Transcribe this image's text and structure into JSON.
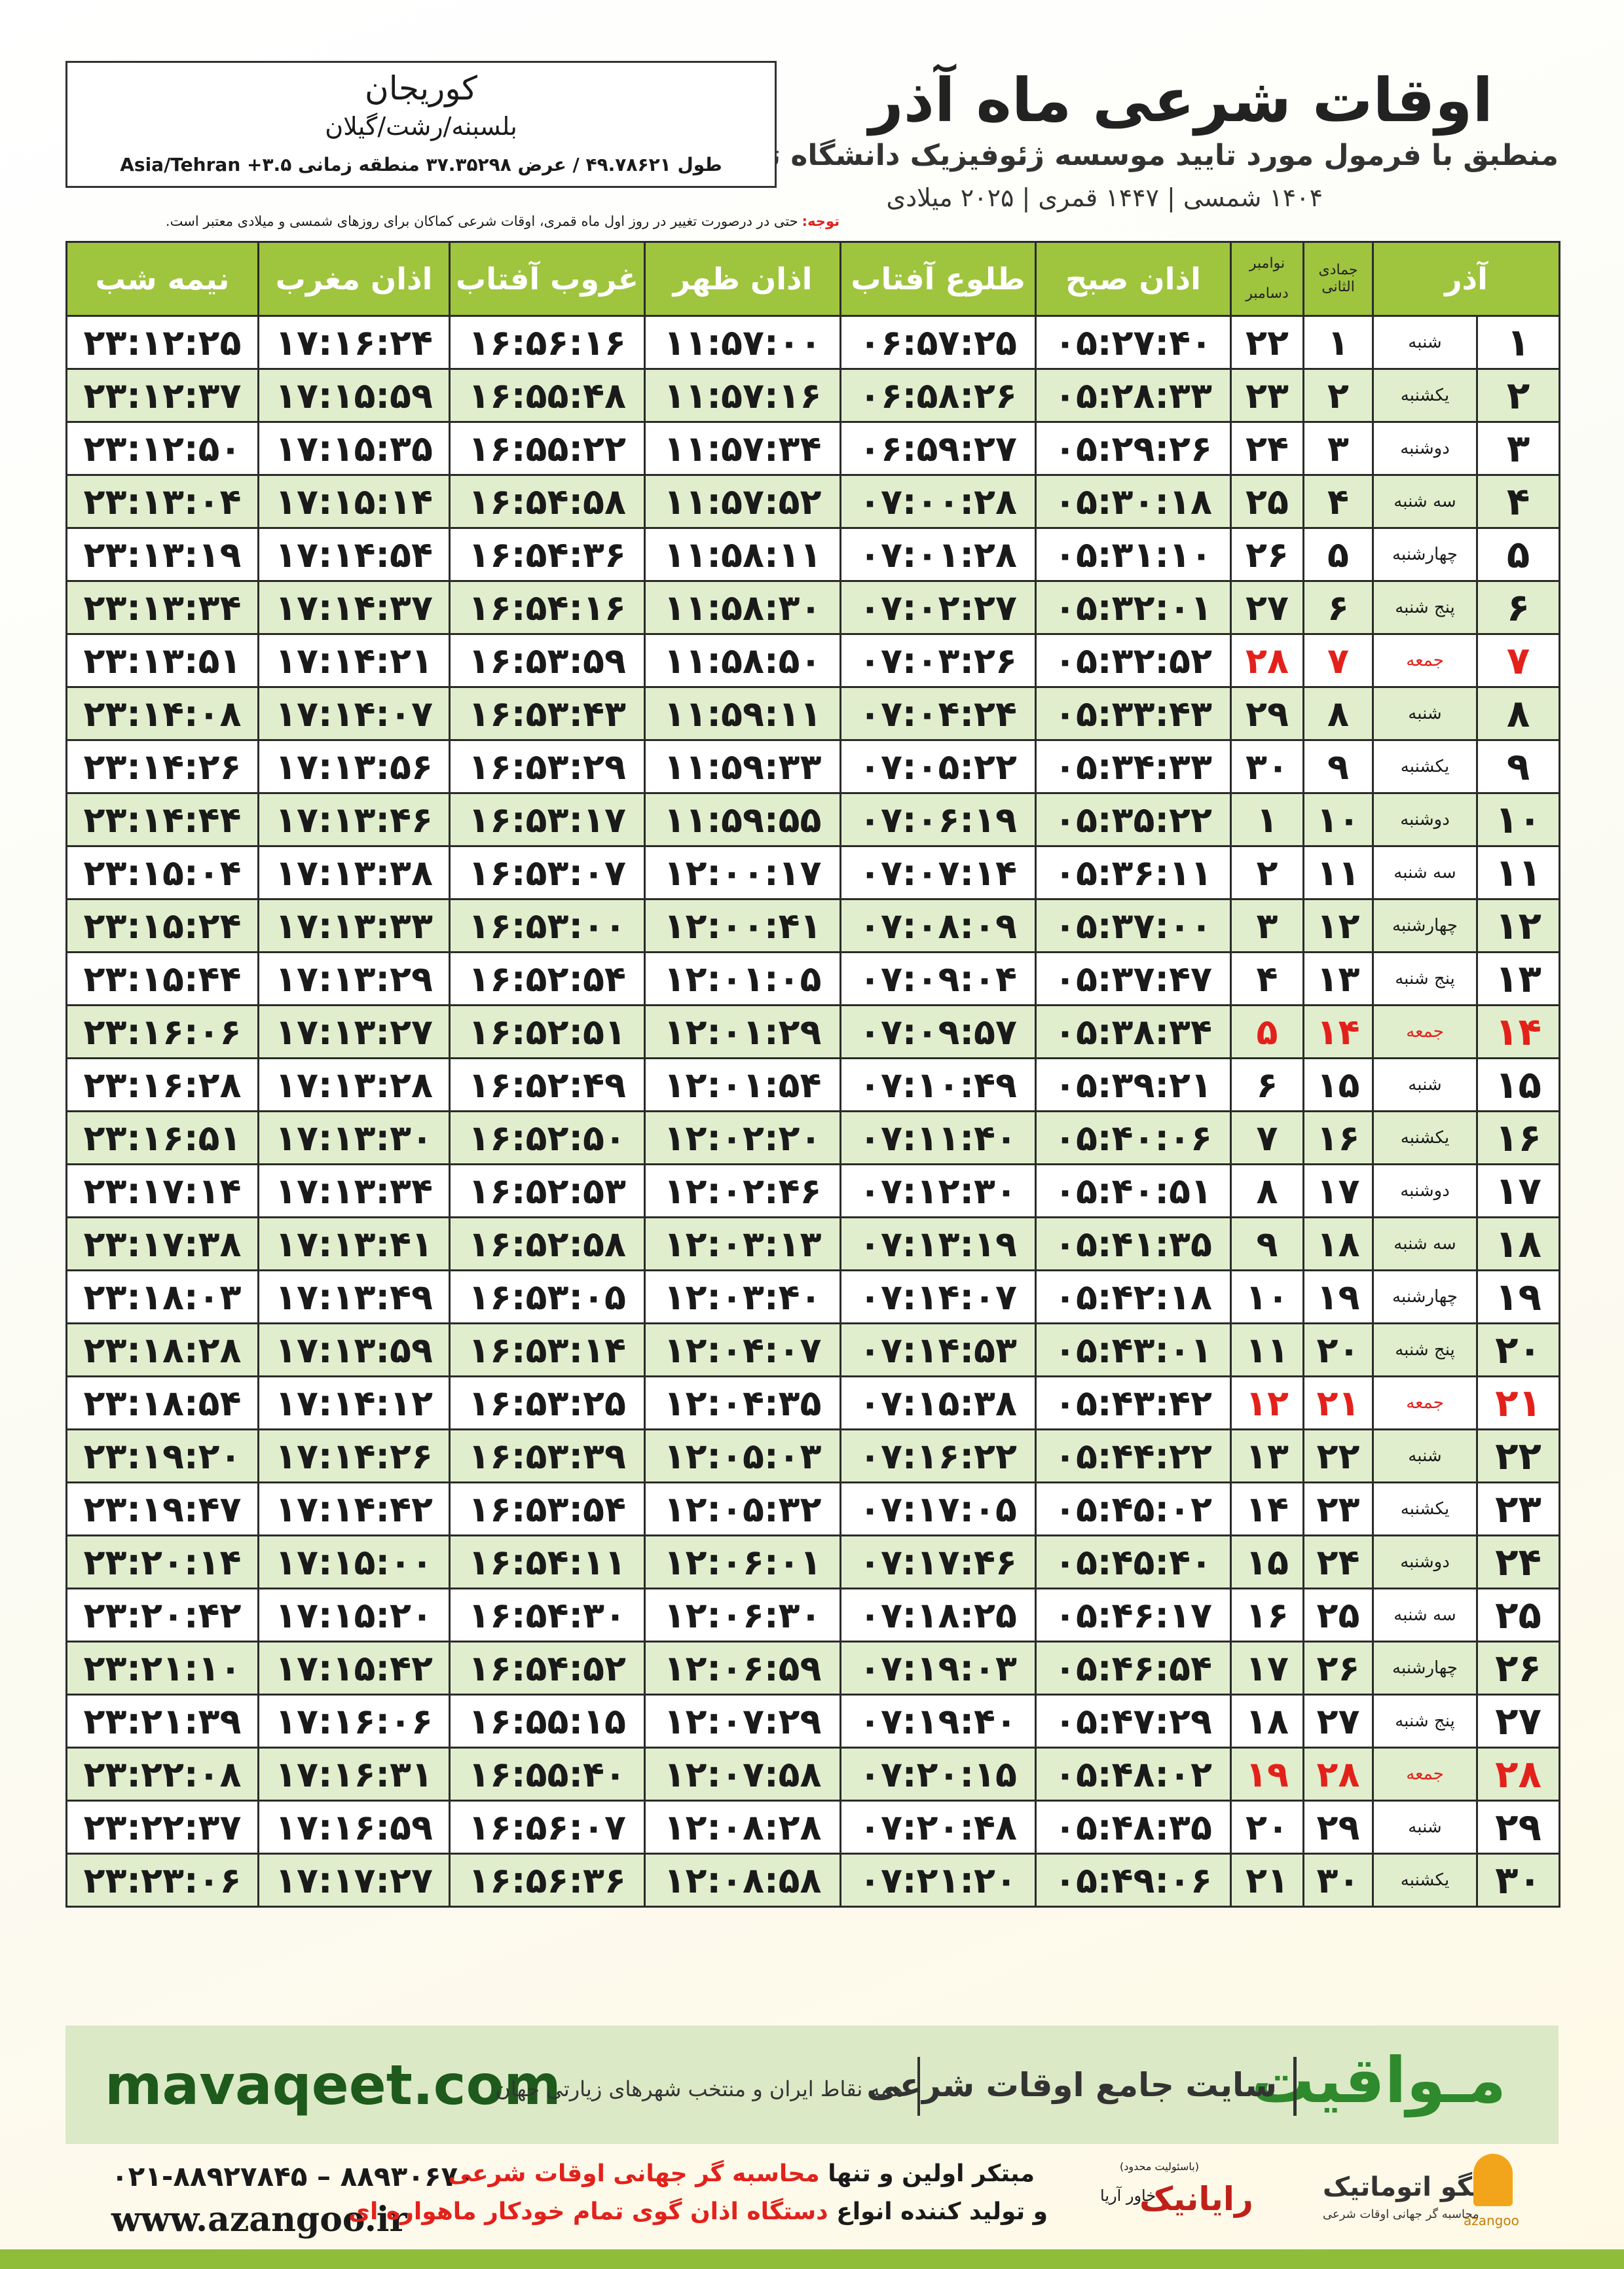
{
  "header": {
    "title": "اوقات شرعی ماه آذر",
    "subtitle": "منطبق با فرمول مورد تایید موسسه ژئوفیزیک دانشگاه تهران",
    "dates": "۱۴۰۴ شمسی | ۱۴۴۷ قمری | ۲۰۲۵ میلادی"
  },
  "location": {
    "city": "کوریجان",
    "region": "بلسبنه/رشت/گیلان",
    "coords": "طول ۴۹.۷۸۶۲۱ / عرض ۳۷.۳۵۲۹۸ منطقه زمانی ۳.۵+ Asia/Tehran"
  },
  "note": {
    "label": "توجه:",
    "text": "حتی در درصورت تغییر در روز اول ماه قمری، اوقات شرعی کماکان برای روزهای شمسی و میلادی معتبر است."
  },
  "table": {
    "header": {
      "month": "آذر",
      "hijri": "جمادی الثانی",
      "greg_top": "نوامبر",
      "greg_bottom": "دسامبر",
      "times": [
        "اذان صبح",
        "طلوع آفتاب",
        "اذان ظهر",
        "غروب آفتاب",
        "اذان مغرب",
        "نیمه شب"
      ]
    },
    "rows": [
      {
        "cells": [
          "۱",
          "شنبه",
          "۱",
          "۲۲",
          "۰۵:۲۷:۴۰",
          "۰۶:۵۷:۲۵",
          "۱۱:۵۷:۰۰",
          "۱۶:۵۶:۱۶",
          "۱۷:۱۶:۲۴",
          "۲۳:۱۲:۲۵"
        ],
        "color": "#1a1a1a"
      },
      {
        "cells": [
          "۲",
          "یکشنبه",
          "۲",
          "۲۳",
          "۰۵:۲۸:۳۳",
          "۰۶:۵۸:۲۶",
          "۱۱:۵۷:۱۶",
          "۱۶:۵۵:۴۸",
          "۱۷:۱۵:۵۹",
          "۲۳:۱۲:۳۷"
        ],
        "color": "#1a1a1a"
      },
      {
        "cells": [
          "۳",
          "دوشنبه",
          "۳",
          "۲۴",
          "۰۵:۲۹:۲۶",
          "۰۶:۵۹:۲۷",
          "۱۱:۵۷:۳۴",
          "۱۶:۵۵:۲۲",
          "۱۷:۱۵:۳۵",
          "۲۳:۱۲:۵۰"
        ],
        "color": "#1a1a1a"
      },
      {
        "cells": [
          "۴",
          "سه شنبه",
          "۴",
          "۲۵",
          "۰۵:۳۰:۱۸",
          "۰۷:۰۰:۲۸",
          "۱۱:۵۷:۵۲",
          "۱۶:۵۴:۵۸",
          "۱۷:۱۵:۱۴",
          "۲۳:۱۳:۰۴"
        ],
        "color": "#1a1a1a"
      },
      {
        "cells": [
          "۵",
          "چهارشنبه",
          "۵",
          "۲۶",
          "۰۵:۳۱:۱۰",
          "۰۷:۰۱:۲۸",
          "۱۱:۵۸:۱۱",
          "۱۶:۵۴:۳۶",
          "۱۷:۱۴:۵۴",
          "۲۳:۱۳:۱۹"
        ],
        "color": "#1a1a1a"
      },
      {
        "cells": [
          "۶",
          "پنج شنبه",
          "۶",
          "۲۷",
          "۰۵:۳۲:۰۱",
          "۰۷:۰۲:۲۷",
          "۱۱:۵۸:۳۰",
          "۱۶:۵۴:۱۶",
          "۱۷:۱۴:۳۷",
          "۲۳:۱۳:۳۴"
        ],
        "color": "#1a1a1a"
      },
      {
        "cells": [
          "۷",
          "جمعه",
          "۷",
          "۲۸",
          "۰۵:۳۲:۵۲",
          "۰۷:۰۳:۲۶",
          "۱۱:۵۸:۵۰",
          "۱۶:۵۳:۵۹",
          "۱۷:۱۴:۲۱",
          "۲۳:۱۳:۵۱"
        ],
        "color": "#e3211b"
      },
      {
        "cells": [
          "۸",
          "شنبه",
          "۸",
          "۲۹",
          "۰۵:۳۳:۴۳",
          "۰۷:۰۴:۲۴",
          "۱۱:۵۹:۱۱",
          "۱۶:۵۳:۴۳",
          "۱۷:۱۴:۰۷",
          "۲۳:۱۴:۰۸"
        ],
        "color": "#1a1a1a"
      },
      {
        "cells": [
          "۹",
          "یکشنبه",
          "۹",
          "۳۰",
          "۰۵:۳۴:۳۳",
          "۰۷:۰۵:۲۲",
          "۱۱:۵۹:۳۳",
          "۱۶:۵۳:۲۹",
          "۱۷:۱۳:۵۶",
          "۲۳:۱۴:۲۶"
        ],
        "color": "#1a1a1a"
      },
      {
        "cells": [
          "۱۰",
          "دوشنبه",
          "۱۰",
          "۱",
          "۰۵:۳۵:۲۲",
          "۰۷:۰۶:۱۹",
          "۱۱:۵۹:۵۵",
          "۱۶:۵۳:۱۷",
          "۱۷:۱۳:۴۶",
          "۲۳:۱۴:۴۴"
        ],
        "color": "#1a1a1a"
      },
      {
        "cells": [
          "۱۱",
          "سه شنبه",
          "۱۱",
          "۲",
          "۰۵:۳۶:۱۱",
          "۰۷:۰۷:۱۴",
          "۱۲:۰۰:۱۷",
          "۱۶:۵۳:۰۷",
          "۱۷:۱۳:۳۸",
          "۲۳:۱۵:۰۴"
        ],
        "color": "#1a1a1a"
      },
      {
        "cells": [
          "۱۲",
          "چهارشنبه",
          "۱۲",
          "۳",
          "۰۵:۳۷:۰۰",
          "۰۷:۰۸:۰۹",
          "۱۲:۰۰:۴۱",
          "۱۶:۵۳:۰۰",
          "۱۷:۱۳:۳۳",
          "۲۳:۱۵:۲۴"
        ],
        "color": "#1a1a1a"
      },
      {
        "cells": [
          "۱۳",
          "پنج شنبه",
          "۱۳",
          "۴",
          "۰۵:۳۷:۴۷",
          "۰۷:۰۹:۰۴",
          "۱۲:۰۱:۰۵",
          "۱۶:۵۲:۵۴",
          "۱۷:۱۳:۲۹",
          "۲۳:۱۵:۴۴"
        ],
        "color": "#1a1a1a"
      },
      {
        "cells": [
          "۱۴",
          "جمعه",
          "۱۴",
          "۵",
          "۰۵:۳۸:۳۴",
          "۰۷:۰۹:۵۷",
          "۱۲:۰۱:۲۹",
          "۱۶:۵۲:۵۱",
          "۱۷:۱۳:۲۷",
          "۲۳:۱۶:۰۶"
        ],
        "color": "#e3211b"
      },
      {
        "cells": [
          "۱۵",
          "شنبه",
          "۱۵",
          "۶",
          "۰۵:۳۹:۲۱",
          "۰۷:۱۰:۴۹",
          "۱۲:۰۱:۵۴",
          "۱۶:۵۲:۴۹",
          "۱۷:۱۳:۲۸",
          "۲۳:۱۶:۲۸"
        ],
        "color": "#1a1a1a"
      },
      {
        "cells": [
          "۱۶",
          "یکشنبه",
          "۱۶",
          "۷",
          "۰۵:۴۰:۰۶",
          "۰۷:۱۱:۴۰",
          "۱۲:۰۲:۲۰",
          "۱۶:۵۲:۵۰",
          "۱۷:۱۳:۳۰",
          "۲۳:۱۶:۵۱"
        ],
        "color": "#1a1a1a"
      },
      {
        "cells": [
          "۱۷",
          "دوشنبه",
          "۱۷",
          "۸",
          "۰۵:۴۰:۵۱",
          "۰۷:۱۲:۳۰",
          "۱۲:۰۲:۴۶",
          "۱۶:۵۲:۵۳",
          "۱۷:۱۳:۳۴",
          "۲۳:۱۷:۱۴"
        ],
        "color": "#1a1a1a"
      },
      {
        "cells": [
          "۱۸",
          "سه شنبه",
          "۱۸",
          "۹",
          "۰۵:۴۱:۳۵",
          "۰۷:۱۳:۱۹",
          "۱۲:۰۳:۱۳",
          "۱۶:۵۲:۵۸",
          "۱۷:۱۳:۴۱",
          "۲۳:۱۷:۳۸"
        ],
        "color": "#1a1a1a"
      },
      {
        "cells": [
          "۱۹",
          "چهارشنبه",
          "۱۹",
          "۱۰",
          "۰۵:۴۲:۱۸",
          "۰۷:۱۴:۰۷",
          "۱۲:۰۳:۴۰",
          "۱۶:۵۳:۰۵",
          "۱۷:۱۳:۴۹",
          "۲۳:۱۸:۰۳"
        ],
        "color": "#1a1a1a"
      },
      {
        "cells": [
          "۲۰",
          "پنج شنبه",
          "۲۰",
          "۱۱",
          "۰۵:۴۳:۰۱",
          "۰۷:۱۴:۵۳",
          "۱۲:۰۴:۰۷",
          "۱۶:۵۳:۱۴",
          "۱۷:۱۳:۵۹",
          "۲۳:۱۸:۲۸"
        ],
        "color": "#1a1a1a"
      },
      {
        "cells": [
          "۲۱",
          "جمعه",
          "۲۱",
          "۱۲",
          "۰۵:۴۳:۴۲",
          "۰۷:۱۵:۳۸",
          "۱۲:۰۴:۳۵",
          "۱۶:۵۳:۲۵",
          "۱۷:۱۴:۱۲",
          "۲۳:۱۸:۵۴"
        ],
        "color": "#e3211b"
      },
      {
        "cells": [
          "۲۲",
          "شنبه",
          "۲۲",
          "۱۳",
          "۰۵:۴۴:۲۲",
          "۰۷:۱۶:۲۲",
          "۱۲:۰۵:۰۳",
          "۱۶:۵۳:۳۹",
          "۱۷:۱۴:۲۶",
          "۲۳:۱۹:۲۰"
        ],
        "color": "#1a1a1a"
      },
      {
        "cells": [
          "۲۳",
          "یکشنبه",
          "۲۳",
          "۱۴",
          "۰۵:۴۵:۰۲",
          "۰۷:۱۷:۰۵",
          "۱۲:۰۵:۳۲",
          "۱۶:۵۳:۵۴",
          "۱۷:۱۴:۴۲",
          "۲۳:۱۹:۴۷"
        ],
        "color": "#1a1a1a"
      },
      {
        "cells": [
          "۲۴",
          "دوشنبه",
          "۲۴",
          "۱۵",
          "۰۵:۴۵:۴۰",
          "۰۷:۱۷:۴۶",
          "۱۲:۰۶:۰۱",
          "۱۶:۵۴:۱۱",
          "۱۷:۱۵:۰۰",
          "۲۳:۲۰:۱۴"
        ],
        "color": "#1a1a1a"
      },
      {
        "cells": [
          "۲۵",
          "سه شنبه",
          "۲۵",
          "۱۶",
          "۰۵:۴۶:۱۷",
          "۰۷:۱۸:۲۵",
          "۱۲:۰۶:۳۰",
          "۱۶:۵۴:۳۰",
          "۱۷:۱۵:۲۰",
          "۲۳:۲۰:۴۲"
        ],
        "color": "#1a1a1a"
      },
      {
        "cells": [
          "۲۶",
          "چهارشنبه",
          "۲۶",
          "۱۷",
          "۰۵:۴۶:۵۴",
          "۰۷:۱۹:۰۳",
          "۱۲:۰۶:۵۹",
          "۱۶:۵۴:۵۲",
          "۱۷:۱۵:۴۲",
          "۲۳:۲۱:۱۰"
        ],
        "color": "#1a1a1a"
      },
      {
        "cells": [
          "۲۷",
          "پنج شنبه",
          "۲۷",
          "۱۸",
          "۰۵:۴۷:۲۹",
          "۰۷:۱۹:۴۰",
          "۱۲:۰۷:۲۹",
          "۱۶:۵۵:۱۵",
          "۱۷:۱۶:۰۶",
          "۲۳:۲۱:۳۹"
        ],
        "color": "#1a1a1a"
      },
      {
        "cells": [
          "۲۸",
          "جمعه",
          "۲۸",
          "۱۹",
          "۰۵:۴۸:۰۲",
          "۰۷:۲۰:۱۵",
          "۱۲:۰۷:۵۸",
          "۱۶:۵۵:۴۰",
          "۱۷:۱۶:۳۱",
          "۲۳:۲۲:۰۸"
        ],
        "color": "#e3211b"
      },
      {
        "cells": [
          "۲۹",
          "شنبه",
          "۲۹",
          "۲۰",
          "۰۵:۴۸:۳۵",
          "۰۷:۲۰:۴۸",
          "۱۲:۰۸:۲۸",
          "۱۶:۵۶:۰۷",
          "۱۷:۱۶:۵۹",
          "۲۳:۲۲:۳۷"
        ],
        "color": "#1a1a1a"
      },
      {
        "cells": [
          "۳۰",
          "یکشنبه",
          "۳۰",
          "۲۱",
          "۰۵:۴۹:۰۶",
          "۰۷:۲۱:۲۰",
          "۱۲:۰۸:۵۸",
          "۱۶:۵۶:۳۶",
          "۱۷:۱۷:۲۷",
          "۲۳:۲۳:۰۶"
        ],
        "color": "#1a1a1a"
      }
    ]
  },
  "banner": {
    "site": "mavaqeet.com",
    "brand": "مـواقیت",
    "slogan": "سایت جامع اوقات شرعی",
    "coverage": "همه نقاط ایران و منتخب شهرهای زیارتی جهان"
  },
  "footer": {
    "phone": "۰۲۱-۸۸۹۲۷۸۴۵ – ۸۸۹۳۰۶۷۰",
    "web": "www.azangoo.ir",
    "line1": [
      "مبتکر اولین و تنها",
      "محاسبه گر جهانی اوقات شرعی"
    ],
    "line2": [
      "و تولید کننده انواع",
      "دستگاه اذان گوی تمام خودکار ماهواره ای"
    ],
    "raianik": "رایانیک",
    "khavar": "خاور آریا",
    "limited": "(باسئولیت محدود)",
    "azangoo_fa": "اذانگو اتوماتیک",
    "azangoo_sub": "محاسبه گر جهانی اوقات شرعی",
    "azangoo_en": "azangoo"
  }
}
